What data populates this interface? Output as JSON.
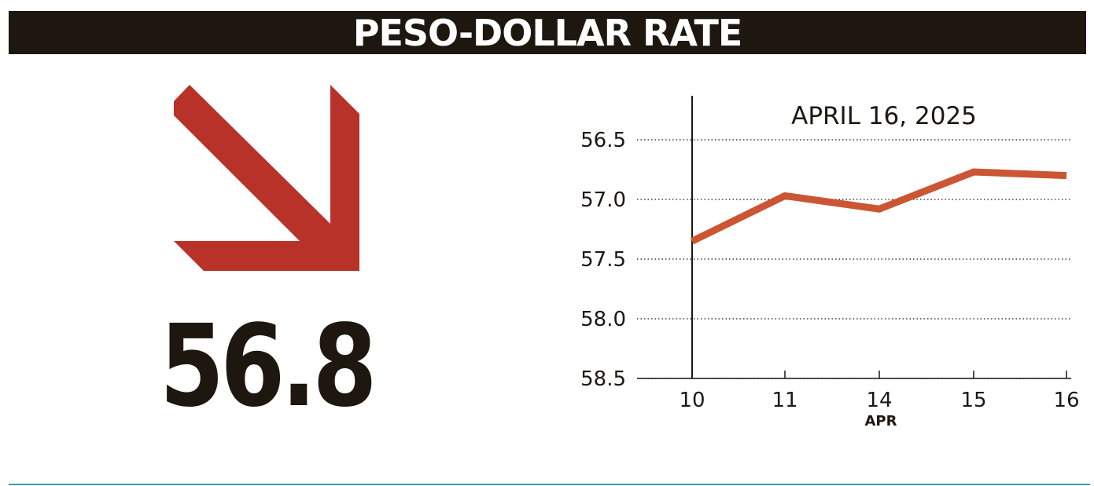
{
  "header": {
    "title": "PESO-DOLLAR RATE"
  },
  "headline": {
    "value": "56.8"
  },
  "colors": {
    "header_bg": "#1e1710",
    "arrow": "#b8322a",
    "line": "#cc5534",
    "footer_rule": "#3aa0b4",
    "text": "#1e1710"
  },
  "icons": {
    "trend": "arrow-down-right-icon"
  },
  "chart_data": {
    "type": "line",
    "title": "APRIL 16, 2025",
    "categories": [
      "10",
      "11",
      "14",
      "15",
      "16"
    ],
    "x_axis_caption": "APR",
    "values": [
      57.35,
      56.97,
      57.08,
      56.77,
      56.8
    ],
    "ylim": [
      58.5,
      56.5
    ],
    "y_inverted": true,
    "y_ticks": [
      "56.5",
      "57.0",
      "57.5",
      "58.0",
      "58.5"
    ],
    "grid": "dotted horizontal"
  }
}
